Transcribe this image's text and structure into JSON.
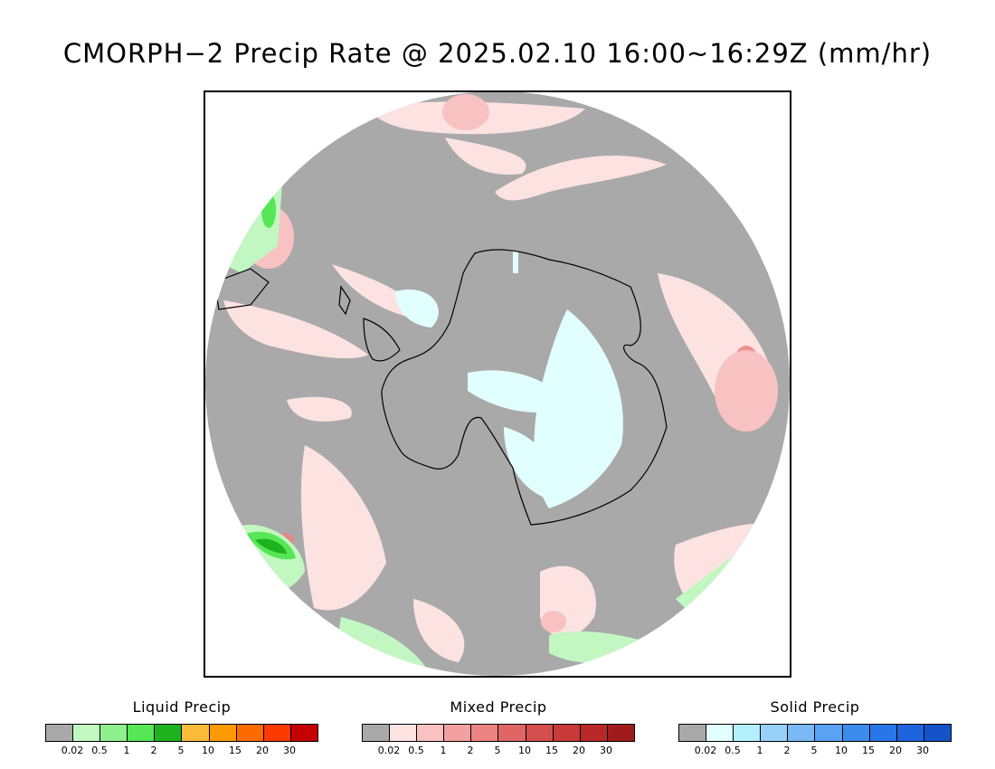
{
  "title": "CMORPH−2 Precip Rate @ 2025.02.10 16:00~16:29Z (mm/hr)",
  "map": {
    "projection": "south-polar-stereographic",
    "region": "Antarctica / Southern Ocean",
    "background_color": "#a9a9a9",
    "coastline_color": "#000000"
  },
  "legends": [
    {
      "title": "Liquid Precip",
      "colors": [
        "#a9a9a9",
        "#c2f7c2",
        "#8ef08e",
        "#56e656",
        "#1fb21f",
        "#fdbb3a",
        "#fd9a00",
        "#fd6a00",
        "#fd3a00",
        "#c50000"
      ],
      "ticks": [
        "0.02",
        "0.5",
        "1",
        "2",
        "5",
        "10",
        "15",
        "20",
        "30"
      ]
    },
    {
      "title": "Mixed Precip",
      "colors": [
        "#a9a9a9",
        "#fde2e2",
        "#f9c2c2",
        "#f2a0a0",
        "#ec8282",
        "#e06666",
        "#d44e4e",
        "#c83a3a",
        "#b82828",
        "#a01c1c"
      ],
      "ticks": [
        "0.02",
        "0.5",
        "1",
        "2",
        "5",
        "10",
        "15",
        "20",
        "30"
      ]
    },
    {
      "title": "Solid Precip",
      "colors": [
        "#a9a9a9",
        "#e2ffff",
        "#b4f0fc",
        "#98d0f8",
        "#7ab8f6",
        "#5aa2f2",
        "#3c8cee",
        "#2876e8",
        "#1e64dc",
        "#1454c8"
      ],
      "ticks": [
        "0.02",
        "0.5",
        "1",
        "2",
        "5",
        "10",
        "15",
        "20",
        "30"
      ]
    }
  ]
}
